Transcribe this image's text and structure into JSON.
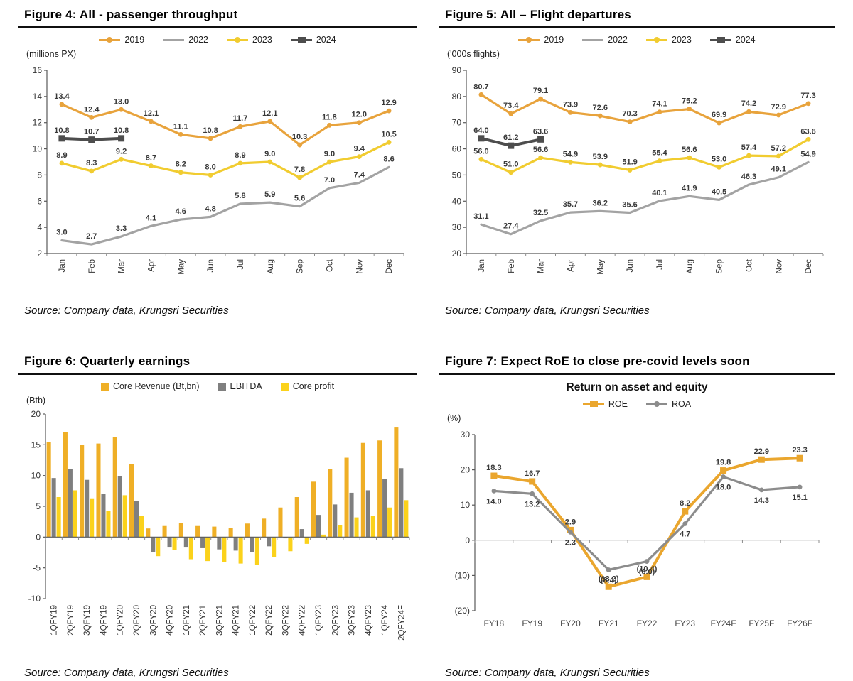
{
  "page": {
    "background": "#ffffff"
  },
  "panels": [
    {
      "title": "Figure 4: All - passenger throughput",
      "source": "Source: Company data, Krungsri Securities",
      "chart_data": {
        "type": "line",
        "unit_label": "(millions PX)",
        "categories": [
          "Jan",
          "Feb",
          "Mar",
          "Apr",
          "May",
          "Jun",
          "Jul",
          "Aug",
          "Sep",
          "Oct",
          "Nov",
          "Dec"
        ],
        "series": [
          {
            "name": "2019",
            "color": "#E8A33C",
            "marker": "circle",
            "label_pos": "above",
            "values": [
              13.4,
              12.4,
              13.0,
              12.1,
              11.1,
              10.8,
              11.7,
              12.1,
              10.3,
              11.8,
              12.0,
              12.9
            ]
          },
          {
            "name": "2022",
            "color": "#A3A3A3",
            "marker": "none",
            "label_pos": "above",
            "values": [
              3.0,
              2.7,
              3.3,
              4.1,
              4.6,
              4.8,
              5.8,
              5.9,
              5.6,
              7.0,
              7.4,
              8.6
            ]
          },
          {
            "name": "2023",
            "color": "#F1CC30",
            "marker": "circle",
            "label_pos": "above",
            "values": [
              8.9,
              8.3,
              9.2,
              8.7,
              8.2,
              8.0,
              8.9,
              9.0,
              7.8,
              9.0,
              9.4,
              10.5
            ]
          },
          {
            "name": "2024",
            "color": "#4D4D4D",
            "marker": "square",
            "label_pos": "above",
            "values": [
              10.8,
              10.7,
              10.8,
              null,
              null,
              null,
              null,
              null,
              null,
              null,
              null,
              null
            ]
          }
        ],
        "ylim": [
          2,
          16
        ],
        "ytick_step": 2,
        "x_label_rotation": -90,
        "legend_position": "top",
        "grid": false,
        "negative_parens": false
      }
    },
    {
      "title": "Figure 5: All – Flight departures",
      "source": "Source: Company data, Krungsri Securities",
      "chart_data": {
        "type": "line",
        "unit_label": "('000s flights)",
        "categories": [
          "Jan",
          "Feb",
          "Mar",
          "Apr",
          "May",
          "Jun",
          "Jul",
          "Aug",
          "Sep",
          "Oct",
          "Nov",
          "Dec"
        ],
        "series": [
          {
            "name": "2019",
            "color": "#E8A33C",
            "marker": "circle",
            "label_pos": "above",
            "values": [
              80.7,
              73.4,
              79.1,
              73.9,
              72.6,
              70.3,
              74.1,
              75.2,
              69.9,
              74.2,
              72.9,
              77.3
            ]
          },
          {
            "name": "2022",
            "color": "#A3A3A3",
            "marker": "none",
            "label_pos": "above",
            "values": [
              31.1,
              27.4,
              32.5,
              35.7,
              36.2,
              35.6,
              40.1,
              41.9,
              40.5,
              46.3,
              49.1,
              54.9
            ]
          },
          {
            "name": "2023",
            "color": "#F1CC30",
            "marker": "circle",
            "label_pos": "above",
            "values": [
              56.0,
              51.0,
              56.6,
              54.9,
              53.9,
              51.9,
              55.4,
              56.6,
              53.0,
              57.4,
              57.2,
              63.6
            ]
          },
          {
            "name": "2024",
            "color": "#4D4D4D",
            "marker": "square",
            "label_pos": "above",
            "values": [
              64.0,
              61.2,
              63.6,
              null,
              null,
              null,
              null,
              null,
              null,
              null,
              null,
              null
            ]
          }
        ],
        "ylim": [
          20,
          90
        ],
        "ytick_step": 10,
        "x_label_rotation": -90,
        "legend_position": "top",
        "grid": false,
        "negative_parens": false
      }
    },
    {
      "title": "Figure 6: Quarterly earnings",
      "source": "Source: Company data, Krungsri Securities",
      "chart_data": {
        "type": "bar",
        "unit_label": "(Btb)",
        "categories": [
          "1QFY19",
          "2QFY19",
          "3QFY19",
          "4QFY19",
          "1QFY20",
          "2QFY20",
          "3QFY20",
          "4QFY20",
          "1QFY21",
          "2QFY21",
          "3QFY21",
          "4QFY21",
          "1QFY22",
          "2QFY22",
          "3QFY22",
          "4QFY22",
          "1QFY23",
          "2QFY23",
          "3QFY23",
          "4QFY23",
          "1QFY24",
          "2QFY24F"
        ],
        "series": [
          {
            "name": "Core Revenue (Bt,bn)",
            "color": "#EFAF26",
            "values": [
              15.5,
              17.1,
              15.0,
              15.2,
              16.2,
              11.9,
              1.4,
              1.8,
              2.3,
              1.8,
              1.7,
              1.5,
              2.2,
              3.0,
              4.8,
              6.5,
              9.0,
              11.1,
              12.9,
              15.3,
              15.7,
              17.8
            ]
          },
          {
            "name": "EBITDA",
            "color": "#7F7F7F",
            "values": [
              9.6,
              11.0,
              9.3,
              7.0,
              9.9,
              5.9,
              -2.4,
              -1.7,
              -1.7,
              -1.8,
              -2.0,
              -2.2,
              -2.5,
              -1.5,
              -0.2,
              1.3,
              3.6,
              5.3,
              7.2,
              7.6,
              9.5,
              11.2
            ]
          },
          {
            "name": "Core profit",
            "color": "#FBD21B",
            "values": [
              6.5,
              7.6,
              6.3,
              4.2,
              6.8,
              3.5,
              -3.1,
              -2.1,
              -3.6,
              -3.9,
              -4.1,
              -4.3,
              -4.5,
              -3.2,
              -2.3,
              -1.1,
              0.4,
              2.0,
              3.2,
              3.5,
              4.8,
              6.0
            ]
          }
        ],
        "ylim": [
          -10,
          20
        ],
        "ytick_step": 5,
        "x_label_rotation": -90,
        "legend_position": "top",
        "grid": false,
        "negative_parens": false
      }
    },
    {
      "title": "Figure 7: Expect RoE to close pre-covid levels soon",
      "source": "Source: Company data, Krungsri Securities",
      "chart_data": {
        "type": "line",
        "chart_title": "Return on asset and equity",
        "unit_label": "(%)",
        "categories": [
          "FY18",
          "FY19",
          "FY20",
          "FY21",
          "FY22",
          "FY23",
          "FY24F",
          "FY25F",
          "FY26F"
        ],
        "series": [
          {
            "name": "ROE",
            "color": "#EAA62E",
            "marker": "square",
            "label_pos": "above",
            "values": [
              18.3,
              16.7,
              2.9,
              -13.2,
              -10.4,
              8.2,
              19.8,
              22.9,
              23.3
            ]
          },
          {
            "name": "ROA",
            "color": "#8C8C8C",
            "marker": "circle",
            "label_pos": "below",
            "values": [
              14.0,
              13.2,
              2.3,
              -8.4,
              -6.0,
              4.7,
              18.0,
              14.3,
              15.1
            ]
          }
        ],
        "ylim": [
          -20,
          30
        ],
        "ytick_step": 10,
        "x_label_rotation": 0,
        "zero_axis": true,
        "legend_position": "top",
        "grid": false,
        "negative_parens": true
      }
    }
  ]
}
